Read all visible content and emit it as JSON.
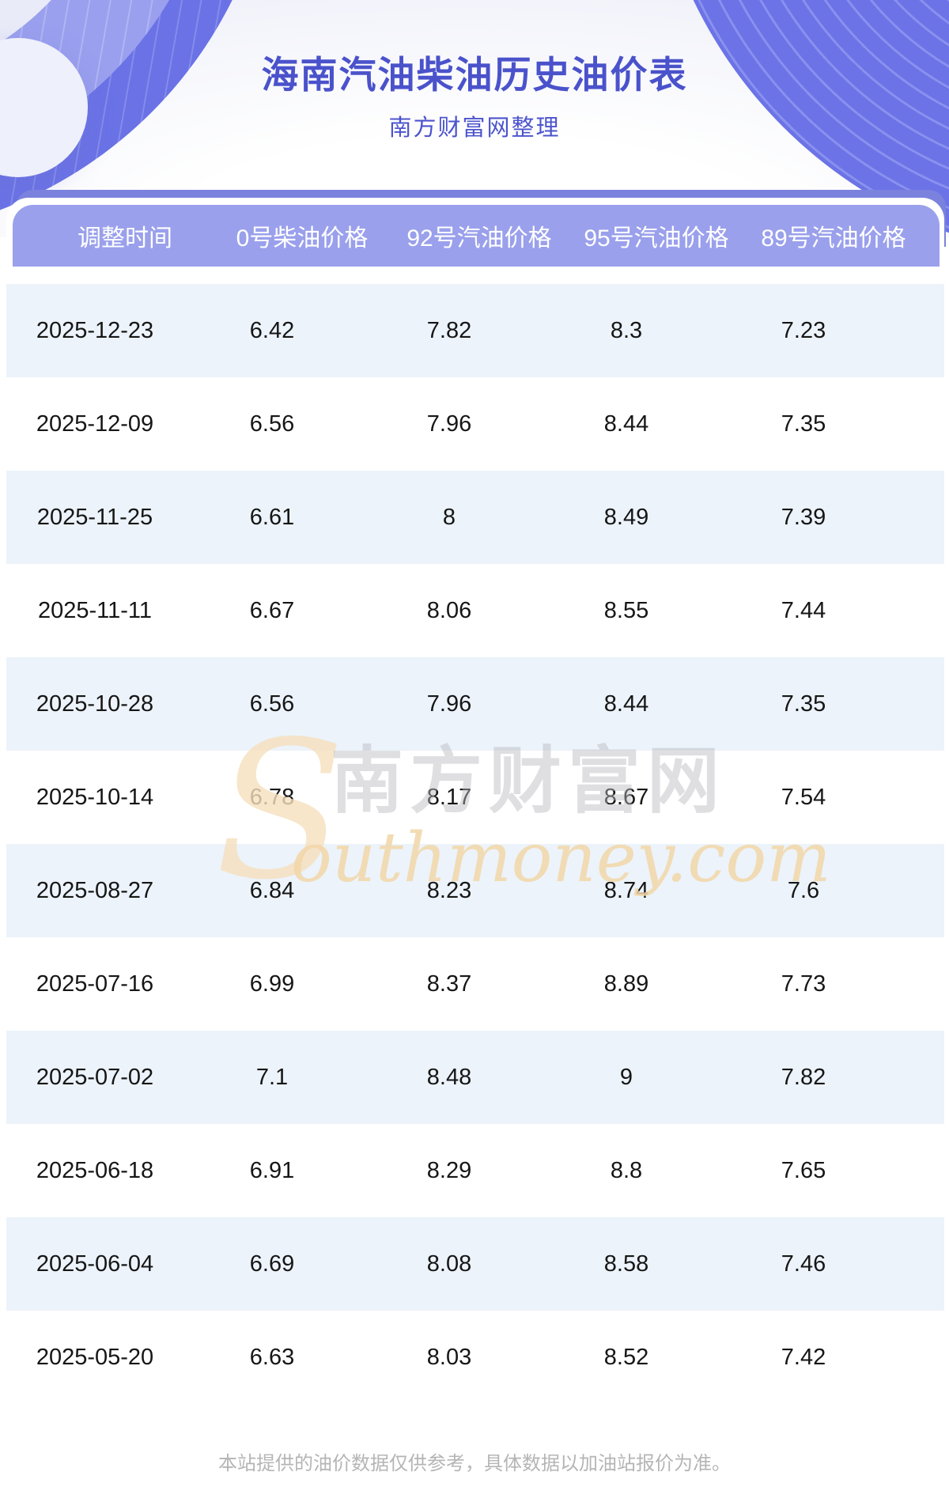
{
  "header": {
    "title": "海南汽油柴油历史油价表",
    "subtitle": "南方财富网整理"
  },
  "table": {
    "columns": [
      "调整时间",
      "0号柴油价格",
      "92号汽油价格",
      "95号汽油价格",
      "89号汽油价格"
    ],
    "rows": [
      [
        "2025-12-23",
        "6.42",
        "7.82",
        "8.3",
        "7.23"
      ],
      [
        "2025-12-09",
        "6.56",
        "7.96",
        "8.44",
        "7.35"
      ],
      [
        "2025-11-25",
        "6.61",
        "8",
        "8.49",
        "7.39"
      ],
      [
        "2025-11-11",
        "6.67",
        "8.06",
        "8.55",
        "7.44"
      ],
      [
        "2025-10-28",
        "6.56",
        "7.96",
        "8.44",
        "7.35"
      ],
      [
        "2025-10-14",
        "6.78",
        "8.17",
        "8.67",
        "7.54"
      ],
      [
        "2025-08-27",
        "6.84",
        "8.23",
        "8.74",
        "7.6"
      ],
      [
        "2025-07-16",
        "6.99",
        "8.37",
        "8.89",
        "7.73"
      ],
      [
        "2025-07-02",
        "7.1",
        "8.48",
        "9",
        "7.82"
      ],
      [
        "2025-06-18",
        "6.91",
        "8.29",
        "8.8",
        "7.65"
      ],
      [
        "2025-06-04",
        "6.69",
        "8.08",
        "8.58",
        "7.46"
      ],
      [
        "2025-05-20",
        "6.63",
        "8.03",
        "8.52",
        "7.42"
      ]
    ]
  },
  "watermark": {
    "initial": "S",
    "cn": "南方财富网",
    "en": "outhmoney.com"
  },
  "footer": {
    "disclaimer": "本站提供的油价数据仅供参考，具体数据以加油站报价为准。"
  },
  "colors": {
    "title_text": "#4a52cb",
    "header_bar": "#9aa0eb",
    "header_back_bar": "#7b82dd",
    "row_stripe": "#ecf3fa",
    "deco_purple": "#6b73e6",
    "watermark_orange": "#f2d7a8",
    "footer_text": "#b5b5b5"
  }
}
